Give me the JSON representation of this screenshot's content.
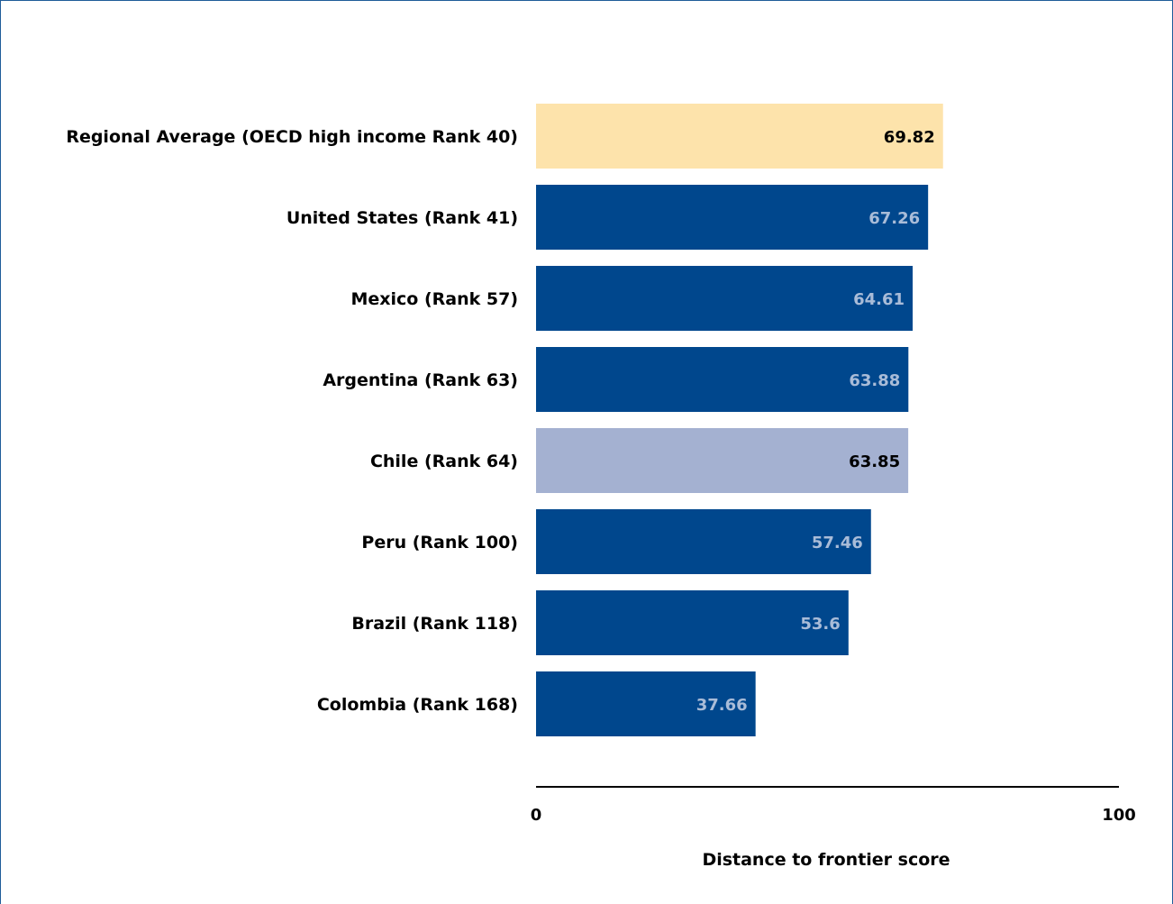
{
  "chart_data": {
    "type": "bar",
    "orientation": "horizontal",
    "categories": [
      "Regional Average (OECD high income Rank 40)",
      "United States (Rank 41)",
      "Mexico (Rank 57)",
      "Argentina (Rank 63)",
      "Chile (Rank 64)",
      "Peru (Rank 100)",
      "Brazil (Rank 118)",
      "Colombia (Rank 168)"
    ],
    "values": [
      69.82,
      67.26,
      64.61,
      63.88,
      63.85,
      57.46,
      53.6,
      37.66
    ],
    "value_labels": [
      "69.82",
      "67.26",
      "64.61",
      "63.88",
      "63.85",
      "57.46",
      "53.6",
      "37.66"
    ],
    "bar_colors": [
      "#fde3ab",
      "#00478d",
      "#00478d",
      "#00478d",
      "#a4b1d1",
      "#00478d",
      "#00478d",
      "#00478d"
    ],
    "label_colors": [
      "#000000",
      "#a9bcd8",
      "#a9bcd8",
      "#a9bcd8",
      "#000000",
      "#a9bcd8",
      "#a9bcd8",
      "#a9bcd8"
    ],
    "xlabel": "Distance to frontier score",
    "xlim": [
      0,
      100
    ],
    "xticks": [
      "0",
      "100"
    ],
    "grid": false
  }
}
